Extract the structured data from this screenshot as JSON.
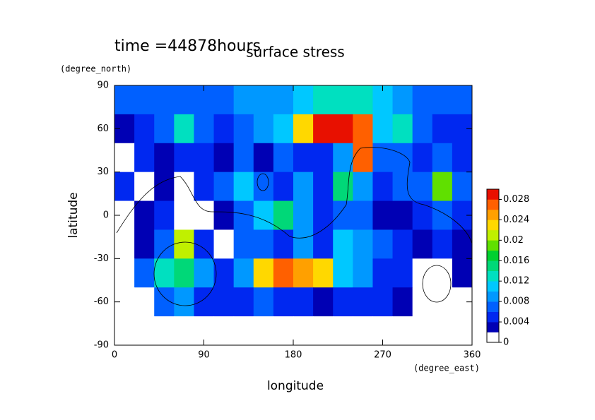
{
  "chart_data": {
    "type": "contour",
    "title": "surface stress",
    "subtitle": "time =44878hours",
    "y_units": "(degree_north)",
    "x_units": "(degree_east)",
    "ylabel": "latitude",
    "xlabel": "longitude",
    "x": [
      10,
      30,
      50,
      70,
      90,
      110,
      130,
      150,
      170,
      190,
      210,
      230,
      250,
      270,
      290,
      310,
      330,
      350
    ],
    "y": [
      80,
      60,
      40,
      20,
      0,
      -20,
      -40,
      -60,
      -80
    ],
    "z": [
      [
        0.007,
        0.007,
        0.007,
        0.006,
        0.006,
        0.006,
        0.008,
        0.008,
        0.008,
        0.01,
        0.012,
        0.012,
        0.012,
        0.01,
        0.008,
        0.007,
        0.007,
        0.007
      ],
      [
        0.003,
        0.004,
        0.006,
        0.012,
        0.006,
        0.005,
        0.006,
        0.008,
        0.01,
        0.022,
        0.029,
        0.029,
        0.026,
        0.01,
        0.012,
        0.006,
        0.004,
        0.004
      ],
      [
        0.001,
        0.004,
        0.003,
        0.004,
        0.005,
        0.003,
        0.006,
        0.003,
        0.006,
        0.004,
        0.004,
        0.008,
        0.026,
        0.006,
        0.006,
        0.004,
        0.006,
        0.004
      ],
      [
        0.004,
        0.001,
        0.003,
        0.001,
        0.004,
        0.006,
        0.01,
        0.006,
        0.004,
        0.008,
        0.004,
        0.014,
        0.008,
        0.004,
        0.006,
        0.006,
        0.018,
        0.006
      ],
      [
        0.001,
        0.003,
        0.005,
        0.001,
        0.001,
        0.002,
        0.006,
        0.01,
        0.014,
        0.008,
        0.004,
        0.006,
        0.006,
        0.003,
        0.003,
        0.005,
        0.006,
        0.004
      ],
      [
        0.001,
        0.003,
        0.006,
        0.02,
        0.004,
        0.001,
        0.006,
        0.006,
        0.004,
        0.008,
        0.004,
        0.01,
        0.008,
        0.006,
        0.004,
        0.003,
        0.004,
        0.003
      ],
      [
        0.001,
        0.006,
        0.012,
        0.014,
        0.008,
        0.004,
        0.008,
        0.022,
        0.026,
        0.024,
        0.022,
        0.01,
        0.008,
        0.005,
        0.004,
        0.001,
        0.001,
        0.002
      ],
      [
        0,
        0.001,
        0.006,
        0.008,
        0.004,
        0.004,
        0.004,
        0.006,
        0.004,
        0.004,
        0.003,
        0.004,
        0.004,
        0.004,
        0.003,
        0.001,
        0,
        0
      ],
      [
        0,
        0,
        0,
        0,
        0,
        0,
        0,
        0,
        0,
        0,
        0,
        0,
        0,
        0,
        0,
        0,
        0,
        0
      ]
    ],
    "xlim": [
      0,
      360
    ],
    "xticks": [
      0,
      90,
      180,
      270,
      360
    ],
    "ylim": [
      -90,
      90
    ],
    "yticks": [
      -90,
      -60,
      -30,
      0,
      30,
      60,
      90
    ],
    "clim": [
      0,
      0.03
    ],
    "cticks": [
      0,
      0.004,
      0.008,
      0.012,
      0.016,
      0.02,
      0.024,
      0.028
    ],
    "colors": [
      "#ffffff",
      "#0000b4",
      "#0028f0",
      "#0060ff",
      "#0098ff",
      "#00c8ff",
      "#00e0c0",
      "#00d878",
      "#00d030",
      "#60e000",
      "#c0f000",
      "#ffd800",
      "#ffa000",
      "#ff6000",
      "#e81000"
    ]
  }
}
